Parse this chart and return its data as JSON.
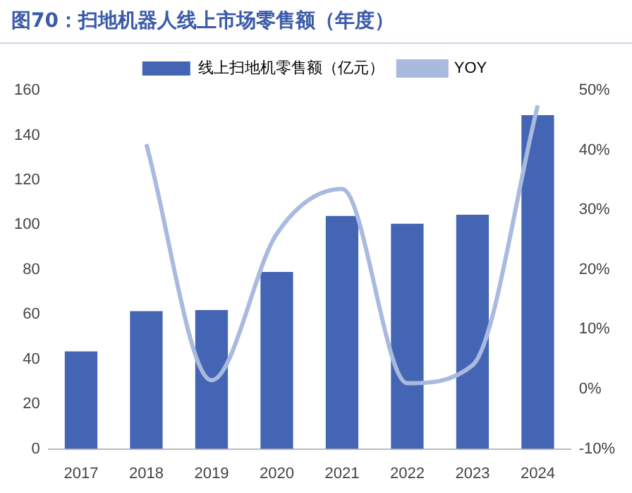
{
  "chart_data": {
    "type": "bar",
    "title": "图70：扫地机器人线上市场零售额（年度）",
    "categories": [
      "2017",
      "2018",
      "2019",
      "2020",
      "2021",
      "2022",
      "2023",
      "2024"
    ],
    "series": [
      {
        "name": "线上扫地机零售额（亿元）",
        "color": "#4465b3",
        "values": [
          43.5,
          61.5,
          62,
          79,
          104,
          100.5,
          104.5,
          149
        ]
      },
      {
        "name": "YOY",
        "type": "line",
        "axis": "y2",
        "color": "#a9badf",
        "values": [
          null,
          41,
          1.5,
          26,
          33.5,
          1,
          4,
          47.5
        ]
      }
    ],
    "ylim": [
      0,
      160
    ],
    "yticks": [
      0,
      20,
      40,
      60,
      80,
      100,
      120,
      140,
      160
    ],
    "y2lim": [
      -10,
      50
    ],
    "y2ticks": [
      {
        "value": -10,
        "label": "-10%"
      },
      {
        "value": 0,
        "label": "0%"
      },
      {
        "value": 10,
        "label": "10%"
      },
      {
        "value": 20,
        "label": "20%"
      },
      {
        "value": 30,
        "label": "30%"
      },
      {
        "value": 40,
        "label": "40%"
      },
      {
        "value": 50,
        "label": "50%"
      }
    ],
    "legend": "top",
    "grid": false,
    "marker": "none",
    "line_style": "solid"
  }
}
